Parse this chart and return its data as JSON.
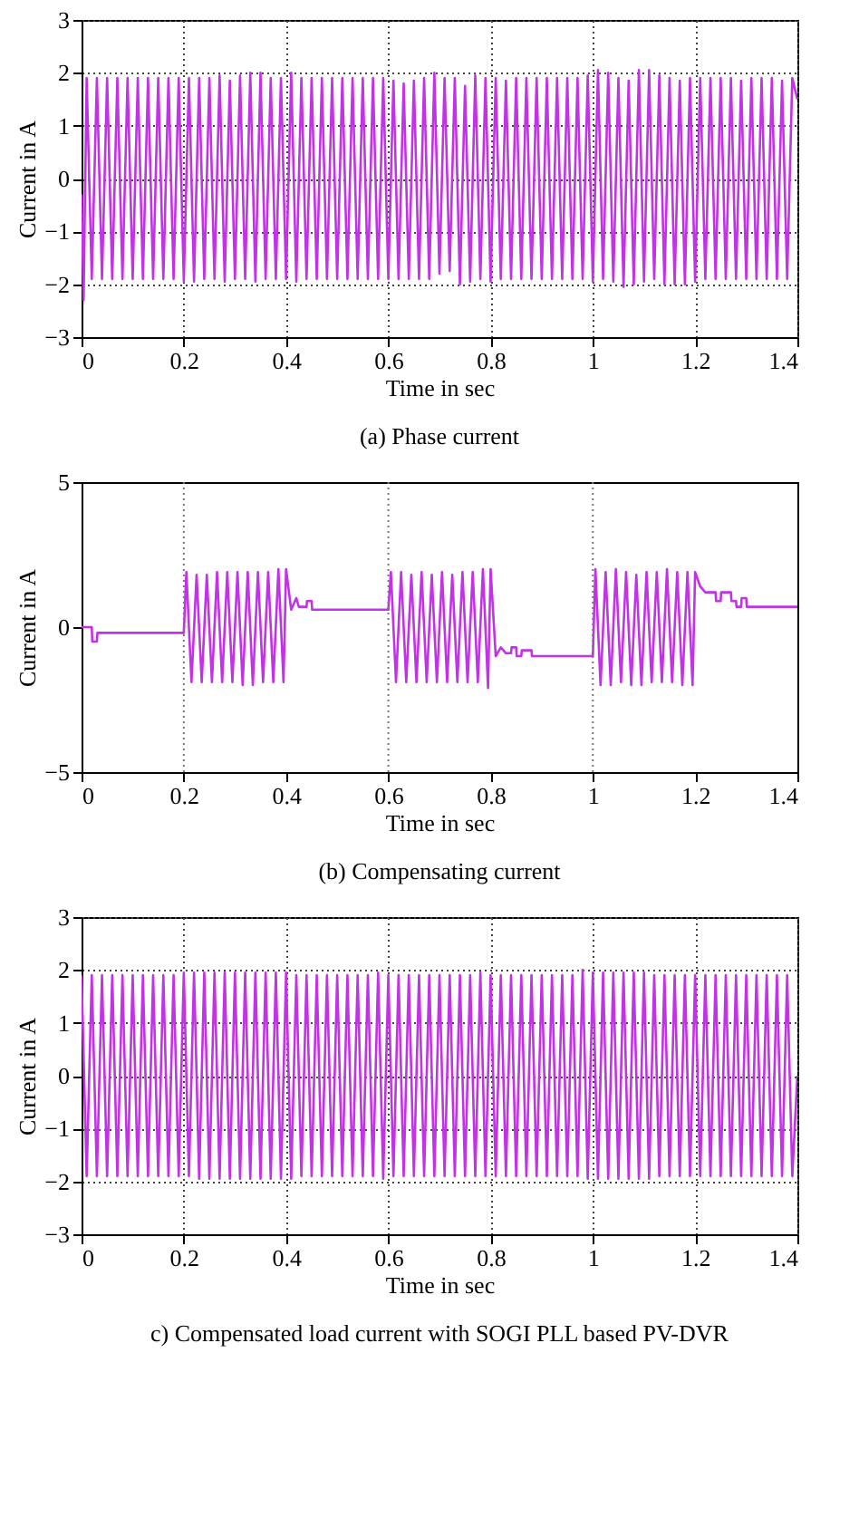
{
  "chart_data": [
    {
      "type": "line",
      "title": "(a)  Phase current",
      "xlabel": "Time in sec",
      "ylabel": "Current in A",
      "xlim": [
        0,
        1.4
      ],
      "xticks": [
        0,
        0.2,
        0.4,
        0.6,
        0.8,
        1,
        1.2,
        1.4
      ],
      "ylim": [
        -3,
        3
      ],
      "yticks": [
        -3,
        -2,
        -1,
        0,
        1,
        2,
        3
      ],
      "grid": true,
      "x": [
        0,
        0.004,
        0.01,
        0.02,
        0.03,
        0.04,
        0.05,
        0.06,
        0.07,
        0.08,
        0.09,
        0.1,
        0.11,
        0.12,
        0.13,
        0.14,
        0.15,
        0.16,
        0.17,
        0.18,
        0.19,
        0.2,
        0.21,
        0.22,
        0.23,
        0.24,
        0.25,
        0.26,
        0.27,
        0.28,
        0.29,
        0.3,
        0.31,
        0.32,
        0.33,
        0.34,
        0.35,
        0.36,
        0.37,
        0.38,
        0.39,
        0.4,
        0.41,
        0.42,
        0.43,
        0.44,
        0.45,
        0.46,
        0.47,
        0.48,
        0.49,
        0.5,
        0.51,
        0.52,
        0.53,
        0.54,
        0.55,
        0.56,
        0.57,
        0.58,
        0.59,
        0.6,
        0.61,
        0.62,
        0.63,
        0.64,
        0.65,
        0.66,
        0.67,
        0.68,
        0.69,
        0.7,
        0.71,
        0.72,
        0.73,
        0.74,
        0.75,
        0.76,
        0.77,
        0.78,
        0.79,
        0.8,
        0.81,
        0.82,
        0.83,
        0.84,
        0.85,
        0.86,
        0.87,
        0.88,
        0.89,
        0.9,
        0.91,
        0.92,
        0.93,
        0.94,
        0.95,
        0.96,
        0.97,
        0.98,
        0.99,
        1,
        1.01,
        1.02,
        1.03,
        1.04,
        1.05,
        1.06,
        1.07,
        1.08,
        1.09,
        1.1,
        1.11,
        1.12,
        1.13,
        1.14,
        1.15,
        1.16,
        1.17,
        1.18,
        1.19,
        1.2,
        1.21,
        1.22,
        1.23,
        1.24,
        1.25,
        1.26,
        1.27,
        1.28,
        1.29,
        1.3,
        1.31,
        1.32,
        1.33,
        1.34,
        1.35,
        1.36,
        1.37,
        1.38,
        1.39,
        1.4
      ],
      "series": [
        {
          "color": "#c232e6",
          "values": [
            -0.3,
            -2.3,
            1.9,
            -1.9,
            1.9,
            -1.9,
            1.9,
            -1.9,
            1.9,
            -1.9,
            1.9,
            -1.9,
            1.9,
            -1.9,
            1.9,
            -1.9,
            1.9,
            -1.9,
            1.9,
            -1.9,
            1.9,
            -1.95,
            1.9,
            -1.95,
            1.9,
            -1.9,
            1.9,
            -1.9,
            1.95,
            -1.95,
            1.85,
            -1.9,
            1.95,
            -1.9,
            2.0,
            -1.95,
            2.0,
            -1.9,
            1.9,
            -1.9,
            1.9,
            -1.9,
            2.0,
            -1.95,
            1.9,
            -1.9,
            1.9,
            -1.9,
            1.9,
            -1.9,
            1.9,
            -1.9,
            1.9,
            -1.9,
            1.9,
            -1.9,
            1.9,
            -1.9,
            1.9,
            -1.9,
            1.9,
            -1.9,
            1.85,
            -1.9,
            1.8,
            -1.9,
            1.85,
            -1.9,
            1.9,
            -1.9,
            2.0,
            -1.8,
            1.9,
            -1.75,
            1.9,
            -2.0,
            1.75,
            -1.95,
            1.95,
            -1.9,
            1.9,
            -1.95,
            1.9,
            -1.9,
            1.85,
            -1.9,
            1.9,
            -1.9,
            1.9,
            -1.9,
            1.9,
            -1.9,
            1.9,
            -1.9,
            1.9,
            -1.9,
            1.9,
            -1.9,
            1.9,
            -1.9,
            1.95,
            -1.95,
            2.05,
            -1.9,
            2.0,
            -1.95,
            1.9,
            -2.05,
            1.85,
            -2.0,
            2.05,
            -1.95,
            2.05,
            -1.9,
            1.95,
            -2.0,
            1.9,
            -2.0,
            1.85,
            -2.0,
            1.9,
            -1.95,
            1.9,
            -1.9,
            1.9,
            -1.9,
            1.9,
            -1.9,
            1.9,
            -1.9,
            1.85,
            -1.9,
            1.9,
            -1.9,
            1.9,
            -1.9,
            1.9,
            -1.9,
            1.85,
            -1.9,
            1.9,
            1.5
          ]
        }
      ]
    },
    {
      "type": "line",
      "title": "(b) Compensating current",
      "xlabel": "Time in sec",
      "ylabel": "Current in A",
      "xlim": [
        0,
        1.4
      ],
      "xticks": [
        0,
        0.2,
        0.4,
        0.6,
        0.8,
        1,
        1.2,
        1.4
      ],
      "ylim": [
        -5,
        5
      ],
      "yticks": [
        -5,
        0,
        5
      ],
      "ref_lines": [
        {
          "axis": "x",
          "value": 0.2
        },
        {
          "axis": "x",
          "value": 0.6
        },
        {
          "axis": "x",
          "value": 1
        }
      ],
      "x": [
        0,
        0.02,
        0.021,
        0.03,
        0.031,
        0.2,
        0.205,
        0.215,
        0.225,
        0.235,
        0.245,
        0.255,
        0.265,
        0.275,
        0.285,
        0.295,
        0.305,
        0.315,
        0.325,
        0.335,
        0.345,
        0.355,
        0.365,
        0.375,
        0.385,
        0.395,
        0.4,
        0.41,
        0.42,
        0.425,
        0.44,
        0.441,
        0.45,
        0.451,
        0.6,
        0.605,
        0.615,
        0.625,
        0.635,
        0.645,
        0.655,
        0.665,
        0.675,
        0.685,
        0.695,
        0.705,
        0.715,
        0.725,
        0.735,
        0.745,
        0.755,
        0.765,
        0.775,
        0.785,
        0.795,
        0.8,
        0.81,
        0.82,
        0.83,
        0.84,
        0.841,
        0.85,
        0.851,
        0.86,
        0.861,
        0.88,
        0.881,
        1,
        1.005,
        1.015,
        1.025,
        1.035,
        1.045,
        1.055,
        1.065,
        1.075,
        1.085,
        1.095,
        1.105,
        1.115,
        1.125,
        1.135,
        1.145,
        1.155,
        1.165,
        1.175,
        1.185,
        1.195,
        1.2,
        1.21,
        1.22,
        1.24,
        1.241,
        1.25,
        1.251,
        1.27,
        1.271,
        1.28,
        1.281,
        1.29,
        1.291,
        1.3,
        1.301,
        1.4
      ],
      "series": [
        {
          "color": "#c232e6",
          "values": [
            0,
            0,
            -0.5,
            -0.5,
            -0.2,
            -0.2,
            1.9,
            -1.9,
            1.8,
            -1.9,
            1.8,
            -1.9,
            1.9,
            -1.9,
            1.9,
            -1.9,
            1.9,
            -2.0,
            1.9,
            -2.0,
            1.9,
            -1.9,
            1.9,
            -1.9,
            2.0,
            -1.9,
            2.0,
            0.6,
            1.0,
            0.7,
            0.7,
            0.9,
            0.9,
            0.6,
            0.6,
            1.9,
            -1.9,
            1.9,
            -1.9,
            1.8,
            -1.9,
            1.9,
            -1.9,
            1.8,
            -1.9,
            1.9,
            -1.9,
            1.8,
            -1.9,
            1.9,
            -1.9,
            1.9,
            -1.9,
            2.0,
            -2.1,
            2.0,
            -1.0,
            -0.7,
            -0.9,
            -0.9,
            -0.7,
            -0.7,
            -1.0,
            -1.0,
            -0.8,
            -0.8,
            -1.0,
            -1.0,
            2.0,
            -2.0,
            1.9,
            -2.0,
            2.0,
            -1.9,
            1.9,
            -2.0,
            1.8,
            -2.0,
            1.9,
            -1.9,
            1.9,
            -1.9,
            2.0,
            -1.9,
            1.9,
            -2.0,
            1.9,
            -2.0,
            1.9,
            1.4,
            1.2,
            1.2,
            0.9,
            0.9,
            1.2,
            1.2,
            0.9,
            0.9,
            0.7,
            0.7,
            1.0,
            1.0,
            0.7,
            0.7
          ]
        }
      ]
    },
    {
      "type": "line",
      "title": "c) Compensated load current with SOGI PLL based PV-DVR",
      "xlabel": "Time in sec",
      "ylabel": "Current in A",
      "xlim": [
        0,
        1.4
      ],
      "xticks": [
        0,
        0.2,
        0.4,
        0.6,
        0.8,
        1,
        1.2,
        1.4
      ],
      "ylim": [
        -3,
        3
      ],
      "yticks": [
        -3,
        -2,
        -1,
        0,
        1,
        2,
        3
      ],
      "grid": true,
      "x": [
        0,
        0.01,
        0.02,
        0.03,
        0.04,
        0.05,
        0.06,
        0.07,
        0.08,
        0.09,
        0.1,
        0.11,
        0.12,
        0.13,
        0.14,
        0.15,
        0.16,
        0.17,
        0.18,
        0.19,
        0.2,
        0.21,
        0.22,
        0.23,
        0.24,
        0.25,
        0.26,
        0.27,
        0.28,
        0.29,
        0.3,
        0.31,
        0.32,
        0.33,
        0.34,
        0.35,
        0.36,
        0.37,
        0.38,
        0.39,
        0.4,
        0.41,
        0.42,
        0.43,
        0.44,
        0.45,
        0.46,
        0.47,
        0.48,
        0.49,
        0.5,
        0.51,
        0.52,
        0.53,
        0.54,
        0.55,
        0.56,
        0.57,
        0.58,
        0.59,
        0.6,
        0.61,
        0.62,
        0.63,
        0.64,
        0.65,
        0.66,
        0.67,
        0.68,
        0.69,
        0.7,
        0.71,
        0.72,
        0.73,
        0.74,
        0.75,
        0.76,
        0.77,
        0.78,
        0.79,
        0.8,
        0.81,
        0.82,
        0.83,
        0.84,
        0.85,
        0.86,
        0.87,
        0.88,
        0.89,
        0.9,
        0.91,
        0.92,
        0.93,
        0.94,
        0.95,
        0.96,
        0.97,
        0.98,
        0.99,
        1,
        1.01,
        1.02,
        1.03,
        1.04,
        1.05,
        1.06,
        1.07,
        1.08,
        1.09,
        1.1,
        1.11,
        1.12,
        1.13,
        1.14,
        1.15,
        1.16,
        1.17,
        1.18,
        1.19,
        1.2,
        1.21,
        1.22,
        1.23,
        1.24,
        1.25,
        1.26,
        1.27,
        1.28,
        1.29,
        1.3,
        1.31,
        1.32,
        1.33,
        1.34,
        1.35,
        1.36,
        1.37,
        1.38,
        1.39,
        1.4
      ],
      "series": [
        {
          "color": "#c232e6",
          "values": [
            1.9,
            -1.9,
            1.9,
            -1.9,
            1.9,
            -1.9,
            1.9,
            -1.9,
            1.9,
            -1.9,
            1.9,
            -1.9,
            1.9,
            -1.9,
            1.9,
            -1.9,
            1.9,
            -1.9,
            1.9,
            -1.9,
            1.95,
            -1.9,
            1.95,
            -1.95,
            1.95,
            -1.95,
            1.95,
            -1.95,
            1.95,
            -1.95,
            1.95,
            -1.95,
            1.95,
            -1.95,
            1.95,
            -1.95,
            1.95,
            -1.95,
            1.95,
            -1.95,
            1.95,
            -1.95,
            1.9,
            -1.9,
            1.9,
            -1.9,
            1.9,
            -1.9,
            1.9,
            -1.9,
            1.9,
            -1.9,
            1.9,
            -1.9,
            1.9,
            -1.9,
            1.9,
            -1.9,
            1.95,
            -1.95,
            1.9,
            -1.9,
            1.9,
            -1.9,
            1.9,
            -1.9,
            1.9,
            -1.9,
            1.9,
            -1.9,
            1.9,
            -1.9,
            1.9,
            -1.9,
            1.9,
            -1.9,
            1.9,
            -1.9,
            1.95,
            -1.9,
            1.9,
            -1.9,
            1.9,
            -1.9,
            1.9,
            -1.9,
            1.9,
            -1.9,
            1.9,
            -1.9,
            1.9,
            -1.9,
            1.9,
            -1.9,
            1.9,
            -1.9,
            1.9,
            -1.9,
            2.0,
            -1.95,
            1.95,
            -1.95,
            1.95,
            -1.95,
            1.95,
            -1.95,
            1.95,
            -1.95,
            1.95,
            -1.95,
            1.95,
            -1.95,
            1.9,
            -1.9,
            1.9,
            -1.9,
            1.9,
            -1.9,
            1.9,
            -1.9,
            1.9,
            -1.9,
            1.9,
            -1.9,
            1.9,
            -1.9,
            1.9,
            -1.9,
            1.9,
            -1.9,
            1.9,
            -1.9,
            1.9,
            -1.9,
            1.9,
            -1.9,
            1.9,
            -1.9,
            1.9,
            -1.9,
            0
          ]
        }
      ]
    }
  ]
}
